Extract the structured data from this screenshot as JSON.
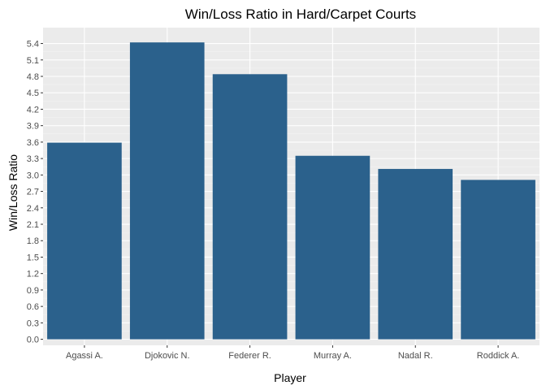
{
  "chart_data": {
    "type": "bar",
    "title": "Win/Loss Ratio in Hard/Carpet Courts",
    "xlabel": "Player",
    "ylabel": "Win/Loss Ratio",
    "categories": [
      "Agassi A.",
      "Djokovic N.",
      "Federer R.",
      "Murray A.",
      "Nadal R.",
      "Roddick A."
    ],
    "values": [
      3.59,
      5.42,
      4.84,
      3.35,
      3.11,
      2.91
    ],
    "yticks": [
      "0.0",
      "0.3",
      "0.6",
      "0.9",
      "1.2",
      "1.5",
      "1.8",
      "2.1",
      "2.4",
      "2.7",
      "3.0",
      "3.3",
      "3.6",
      "3.9",
      "4.2",
      "4.5",
      "4.8",
      "5.1",
      "5.4"
    ],
    "ylim": [
      -0.11,
      5.69
    ],
    "grid": true,
    "legend": "none",
    "colors": {
      "bar": "#2b618c",
      "panel": "#ebebeb",
      "grid_major": "#ffffff",
      "grid_minor": "#f4f4f4"
    }
  }
}
